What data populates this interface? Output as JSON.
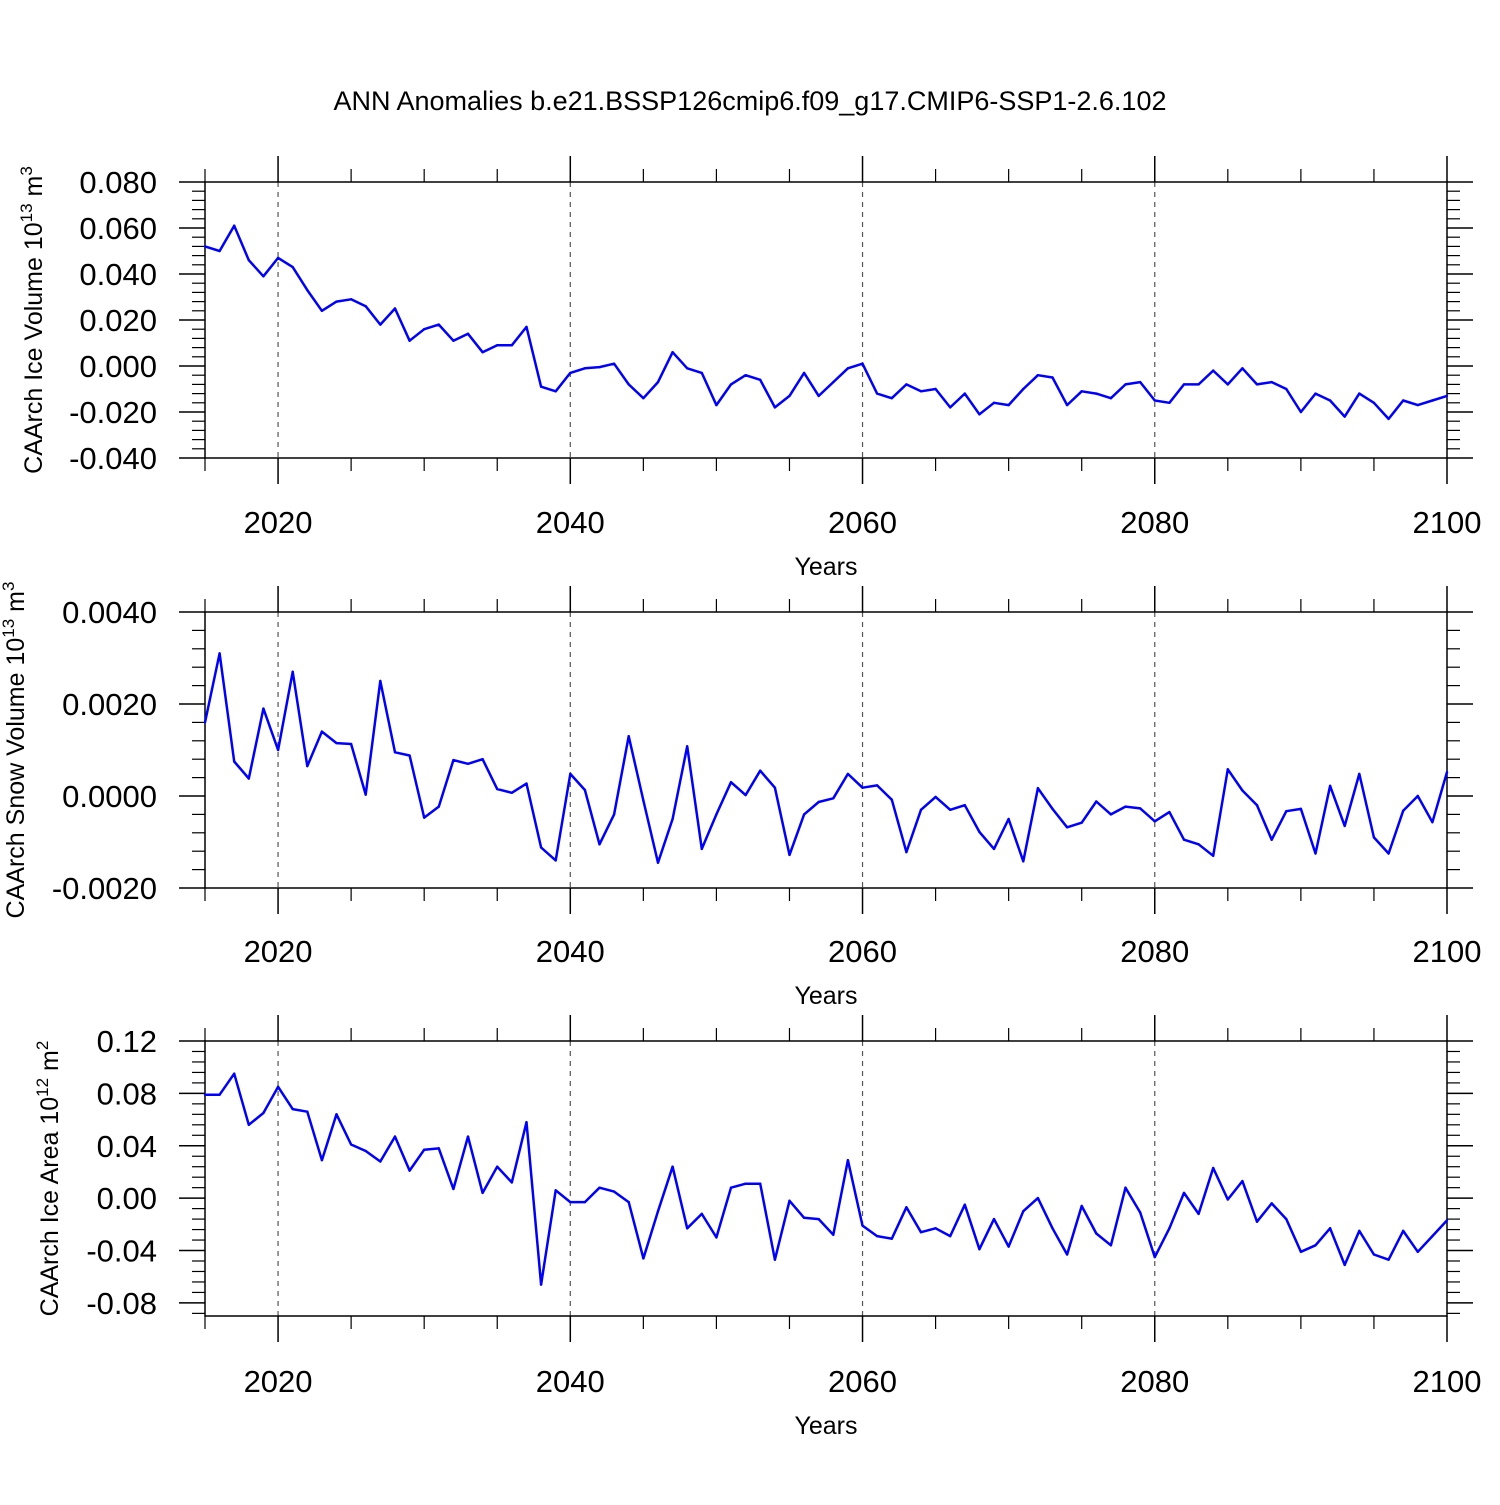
{
  "figure": {
    "title": "ANN Anomalies b.e21.BSSP126cmip6.f09_g17.CMIP6-SSP1-2.6.102",
    "line_color": "#0000ff"
  },
  "chart_data": [
    {
      "type": "line",
      "ylabel": "CAArch Ice Volume 10^13 m^3",
      "ylabel_main": "CAArch Ice Volume 10",
      "ylabel_exp": "13",
      "ylabel_unit": " m",
      "ylabel_unit_exp": "3",
      "xlabel": "Years",
      "xlim": [
        2015,
        2100
      ],
      "ylim": [
        -0.04,
        0.08
      ],
      "x_ticks": [
        2020,
        2040,
        2060,
        2080,
        2100
      ],
      "x_tick_labels": [
        "2020",
        "2040",
        "2060",
        "2080",
        "2100"
      ],
      "y_ticks": [
        -0.04,
        -0.02,
        0.0,
        0.02,
        0.04,
        0.06,
        0.08
      ],
      "y_tick_labels": [
        "-0.040",
        "-0.020",
        "0.000",
        "0.020",
        "0.040",
        "0.060",
        "0.080"
      ],
      "grid": "vertical dashed at major x ticks",
      "x": [
        2015,
        2016,
        2017,
        2018,
        2019,
        2020,
        2021,
        2022,
        2023,
        2024,
        2025,
        2026,
        2027,
        2028,
        2029,
        2030,
        2031,
        2032,
        2033,
        2034,
        2035,
        2036,
        2037,
        2038,
        2039,
        2040,
        2041,
        2042,
        2043,
        2044,
        2045,
        2046,
        2047,
        2048,
        2049,
        2050,
        2051,
        2052,
        2053,
        2054,
        2055,
        2056,
        2057,
        2058,
        2059,
        2060,
        2061,
        2062,
        2063,
        2064,
        2065,
        2066,
        2067,
        2068,
        2069,
        2070,
        2071,
        2072,
        2073,
        2074,
        2075,
        2076,
        2077,
        2078,
        2079,
        2080,
        2081,
        2082,
        2083,
        2084,
        2085,
        2086,
        2087,
        2088,
        2089,
        2090,
        2091,
        2092,
        2093,
        2094,
        2095,
        2096,
        2097,
        2098,
        2099,
        2100
      ],
      "y": [
        0.052,
        0.05,
        0.061,
        0.046,
        0.039,
        0.047,
        0.043,
        0.033,
        0.024,
        0.028,
        0.029,
        0.026,
        0.018,
        0.025,
        0.011,
        0.016,
        0.018,
        0.011,
        0.014,
        0.006,
        0.009,
        0.009,
        0.017,
        -0.009,
        -0.011,
        -0.003,
        -0.001,
        -0.0005,
        0.001,
        -0.008,
        -0.014,
        -0.007,
        0.006,
        -0.001,
        -0.003,
        -0.017,
        -0.008,
        -0.004,
        -0.006,
        -0.018,
        -0.013,
        -0.003,
        -0.013,
        -0.007,
        -0.001,
        0.001,
        -0.012,
        -0.014,
        -0.008,
        -0.011,
        -0.01,
        -0.018,
        -0.012,
        -0.021,
        -0.016,
        -0.017,
        -0.01,
        -0.004,
        -0.005,
        -0.017,
        -0.011,
        -0.012,
        -0.014,
        -0.008,
        -0.007,
        -0.015,
        -0.016,
        -0.008,
        -0.008,
        -0.002,
        -0.008,
        -0.001,
        -0.008,
        -0.007,
        -0.01,
        -0.02,
        -0.012,
        -0.015,
        -0.022,
        -0.012,
        -0.016,
        -0.023,
        -0.015,
        -0.017,
        -0.015,
        -0.013
      ]
    },
    {
      "type": "line",
      "ylabel": "CAArch Snow Volume 10^13 m^3",
      "ylabel_main": "CAArch Snow Volume 10",
      "ylabel_exp": "13",
      "ylabel_unit": " m",
      "ylabel_unit_exp": "3",
      "xlabel": "Years",
      "xlim": [
        2015,
        2100
      ],
      "ylim": [
        -0.002,
        0.004
      ],
      "x_ticks": [
        2020,
        2040,
        2060,
        2080,
        2100
      ],
      "x_tick_labels": [
        "2020",
        "2040",
        "2060",
        "2080",
        "2100"
      ],
      "y_ticks": [
        -0.002,
        0.0,
        0.002,
        0.004
      ],
      "y_tick_labels": [
        "-0.0020",
        "0.0000",
        "0.0020",
        "0.0040"
      ],
      "grid": "vertical dashed at major x ticks",
      "x": [
        2015,
        2016,
        2017,
        2018,
        2019,
        2020,
        2021,
        2022,
        2023,
        2024,
        2025,
        2026,
        2027,
        2028,
        2029,
        2030,
        2031,
        2032,
        2033,
        2034,
        2035,
        2036,
        2037,
        2038,
        2039,
        2040,
        2041,
        2042,
        2043,
        2044,
        2045,
        2046,
        2047,
        2048,
        2049,
        2050,
        2051,
        2052,
        2053,
        2054,
        2055,
        2056,
        2057,
        2058,
        2059,
        2060,
        2061,
        2062,
        2063,
        2064,
        2065,
        2066,
        2067,
        2068,
        2069,
        2070,
        2071,
        2072,
        2073,
        2074,
        2075,
        2076,
        2077,
        2078,
        2079,
        2080,
        2081,
        2082,
        2083,
        2084,
        2085,
        2086,
        2087,
        2088,
        2089,
        2090,
        2091,
        2092,
        2093,
        2094,
        2095,
        2096,
        2097,
        2098,
        2099,
        2100
      ],
      "y": [
        0.0016,
        0.0031,
        0.00075,
        0.00038,
        0.0019,
        0.001,
        0.0027,
        0.00065,
        0.0014,
        0.00115,
        0.00113,
        3e-05,
        0.0025,
        0.00095,
        0.00088,
        -0.00047,
        -0.00023,
        0.00078,
        0.0007,
        0.0008,
        0.00015,
        7e-05,
        0.00027,
        -0.00112,
        -0.0014,
        0.00048,
        0.00013,
        -0.00105,
        -0.0004,
        0.0013,
        -0.0001,
        -0.00145,
        -0.0005,
        0.00108,
        -0.00115,
        -0.0004,
        0.0003,
        2e-05,
        0.00055,
        0.00018,
        -0.00128,
        -0.0004,
        -0.00013,
        -5e-05,
        0.00048,
        0.00018,
        0.00023,
        -8e-05,
        -0.00122,
        -0.0003,
        -2e-05,
        -0.0003,
        -0.0002,
        -0.00078,
        -0.00115,
        -0.0005,
        -0.00142,
        0.00017,
        -0.00028,
        -0.00068,
        -0.00058,
        -0.00012,
        -0.0004,
        -0.00023,
        -0.00027,
        -0.00055,
        -0.00035,
        -0.00095,
        -0.00105,
        -0.0013,
        0.00058,
        0.00012,
        -0.0002,
        -0.00095,
        -0.00033,
        -0.00028,
        -0.00125,
        0.00022,
        -0.00065,
        0.00048,
        -0.0009,
        -0.00125,
        -0.00032,
        0.0,
        -0.00057,
        0.00052
      ]
    },
    {
      "type": "line",
      "ylabel": "CAArch Ice Area 10^12 m^2",
      "ylabel_main": "CAArch Ice Area 10",
      "ylabel_exp": "12",
      "ylabel_unit": " m",
      "ylabel_unit_exp": "2",
      "xlabel": "Years",
      "xlim": [
        2015,
        2100
      ],
      "ylim": [
        -0.09,
        0.12
      ],
      "x_ticks": [
        2020,
        2040,
        2060,
        2080,
        2100
      ],
      "x_tick_labels": [
        "2020",
        "2040",
        "2060",
        "2080",
        "2100"
      ],
      "y_ticks": [
        -0.08,
        -0.04,
        0.0,
        0.04,
        0.08,
        0.12
      ],
      "y_tick_labels": [
        "-0.08",
        "-0.04",
        "0.00",
        "0.04",
        "0.08",
        "0.12"
      ],
      "grid": "vertical dashed at major x ticks",
      "x": [
        2015,
        2016,
        2017,
        2018,
        2019,
        2020,
        2021,
        2022,
        2023,
        2024,
        2025,
        2026,
        2027,
        2028,
        2029,
        2030,
        2031,
        2032,
        2033,
        2034,
        2035,
        2036,
        2037,
        2038,
        2039,
        2040,
        2041,
        2042,
        2043,
        2044,
        2045,
        2046,
        2047,
        2048,
        2049,
        2050,
        2051,
        2052,
        2053,
        2054,
        2055,
        2056,
        2057,
        2058,
        2059,
        2060,
        2061,
        2062,
        2063,
        2064,
        2065,
        2066,
        2067,
        2068,
        2069,
        2070,
        2071,
        2072,
        2073,
        2074,
        2075,
        2076,
        2077,
        2078,
        2079,
        2080,
        2081,
        2082,
        2083,
        2084,
        2085,
        2086,
        2087,
        2088,
        2089,
        2090,
        2091,
        2092,
        2093,
        2094,
        2095,
        2096,
        2097,
        2098,
        2099,
        2100
      ],
      "y": [
        0.079,
        0.079,
        0.095,
        0.056,
        0.065,
        0.085,
        0.068,
        0.066,
        0.029,
        0.064,
        0.041,
        0.036,
        0.028,
        0.047,
        0.021,
        0.037,
        0.038,
        0.007,
        0.047,
        0.004,
        0.024,
        0.012,
        0.058,
        -0.066,
        0.006,
        -0.003,
        -0.003,
        0.008,
        0.005,
        -0.003,
        -0.046,
        -0.01,
        0.024,
        -0.023,
        -0.012,
        -0.03,
        0.008,
        0.011,
        0.011,
        -0.047,
        -0.002,
        -0.015,
        -0.016,
        -0.028,
        0.029,
        -0.021,
        -0.029,
        -0.031,
        -0.007,
        -0.026,
        -0.023,
        -0.029,
        -0.005,
        -0.039,
        -0.016,
        -0.037,
        -0.01,
        0.0,
        -0.023,
        -0.043,
        -0.006,
        -0.027,
        -0.036,
        0.008,
        -0.011,
        -0.045,
        -0.023,
        0.004,
        -0.012,
        0.023,
        -0.001,
        0.013,
        -0.018,
        -0.004,
        -0.016,
        -0.041,
        -0.036,
        -0.023,
        -0.051,
        -0.025,
        -0.043,
        -0.047,
        -0.025,
        -0.041,
        -0.029,
        -0.017
      ]
    }
  ]
}
